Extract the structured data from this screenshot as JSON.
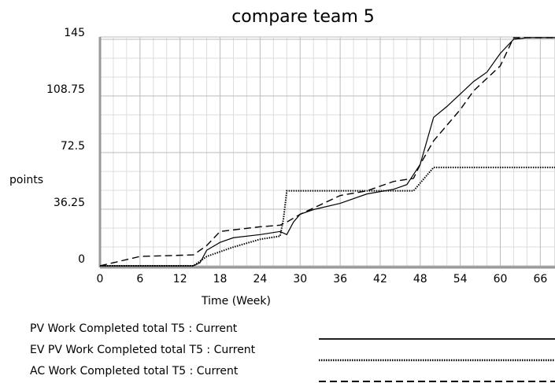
{
  "chart_data": {
    "type": "line",
    "title": "compare team 5",
    "x_label": "Time (Week)",
    "y_label": "points",
    "xlim": [
      0,
      68.2
    ],
    "xticks": [
      0,
      6,
      12,
      18,
      24,
      30,
      36,
      42,
      48,
      54,
      60,
      66
    ],
    "ylim": [
      -1,
      146.5
    ],
    "yticks": [
      0,
      36.25,
      72.5,
      108.75,
      145
    ],
    "grid": true,
    "series": [
      {
        "name": "PV Work Completed total T5 : Current",
        "color": "#000000",
        "dash": "solid",
        "x": [
          0,
          14,
          15,
          16,
          18,
          20,
          24,
          27,
          28,
          29,
          30,
          32,
          36,
          40,
          44,
          46,
          48,
          49,
          50,
          52,
          54,
          56,
          58,
          60,
          62,
          64,
          68.2
        ],
        "values": [
          0,
          0,
          2,
          10,
          15,
          18,
          20,
          22,
          20,
          28,
          33,
          36,
          40,
          46,
          49,
          52,
          65,
          80,
          95,
          102,
          110,
          118,
          124,
          136,
          145,
          146,
          146
        ]
      },
      {
        "name": "EV PV Work Completed total T5 : Current",
        "color": "#000000",
        "dash": "dotted",
        "x": [
          0,
          14,
          16,
          20,
          24,
          27,
          27.5,
          28,
          47,
          50,
          68.2
        ],
        "values": [
          0,
          0,
          6,
          12,
          17,
          19,
          30,
          48,
          48,
          63,
          63
        ]
      },
      {
        "name": "AC Work Completed total T5 : Current",
        "color": "#000000",
        "dash": "dashed",
        "x": [
          0,
          6,
          14,
          16,
          18,
          24,
          27,
          28,
          30,
          36,
          40,
          44,
          47,
          48,
          50,
          52,
          54,
          56,
          58,
          60,
          62,
          64,
          68.2
        ],
        "values": [
          0,
          6,
          7,
          13,
          22,
          25,
          26,
          28,
          33,
          45,
          48,
          54,
          56,
          65,
          80,
          90,
          100,
          112,
          120,
          128,
          146,
          146,
          146
        ]
      }
    ]
  }
}
